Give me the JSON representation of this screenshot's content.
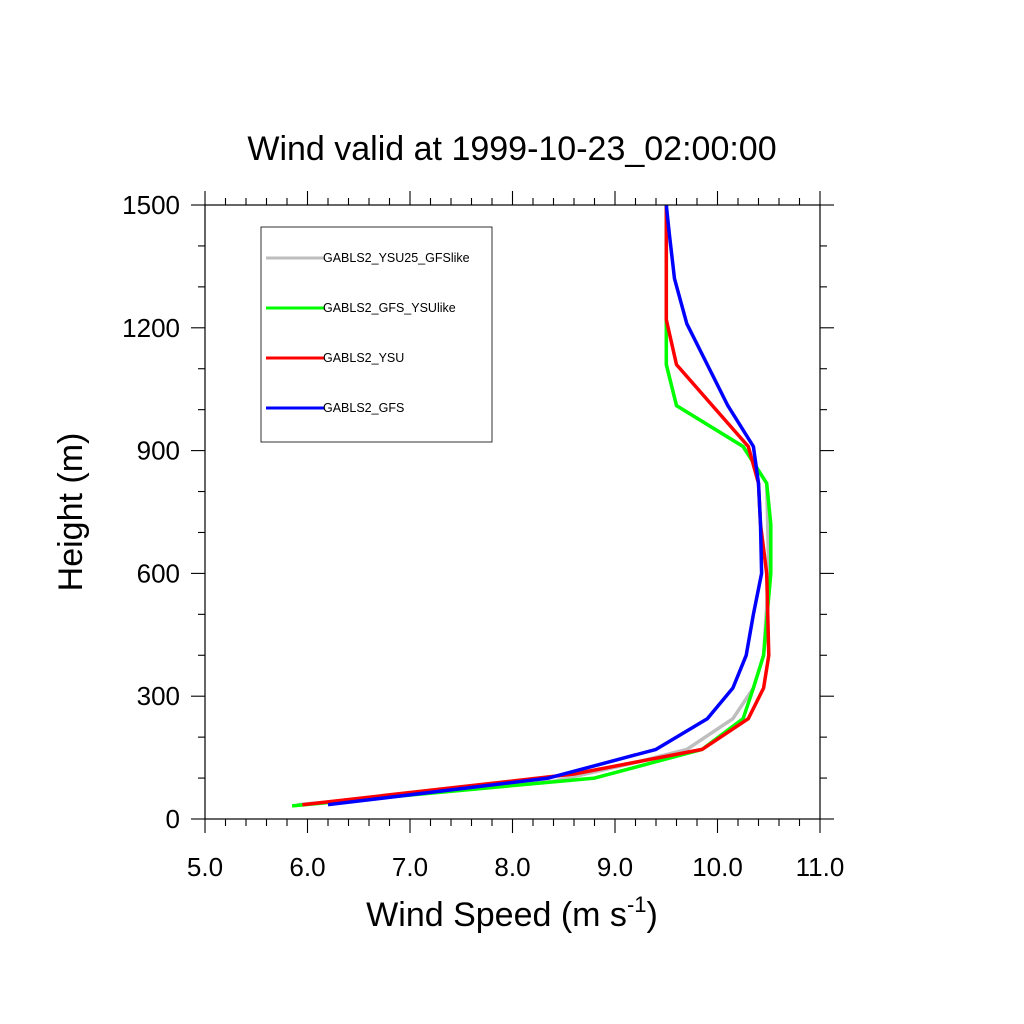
{
  "chart_data": {
    "type": "line",
    "title": "Wind valid at 1999-10-23_02:00:00",
    "xlabel": "Wind Speed (m s",
    "xlabel_sup": "-1",
    "xlabel_close": ")",
    "ylabel": "Height (m)",
    "xlim": [
      5.0,
      11.0
    ],
    "ylim": [
      0,
      1500
    ],
    "xticks": [
      5.0,
      6.0,
      7.0,
      8.0,
      9.0,
      10.0,
      11.0
    ],
    "xtick_labels": [
      "5.0",
      "6.0",
      "7.0",
      "8.0",
      "9.0",
      "10.0",
      "11.0"
    ],
    "yticks": [
      0,
      300,
      600,
      900,
      1200,
      1500
    ],
    "ytick_labels": [
      "0",
      "300",
      "600",
      "900",
      "1200",
      "1500"
    ],
    "grid": false,
    "legend_position": "top-left",
    "series": [
      {
        "name": "GABLS2_YSU25_GFSlike",
        "color": "#bebebe",
        "x": [
          5.9,
          8.4,
          9.15,
          9.7,
          10.15,
          10.35,
          10.45,
          10.5,
          10.48,
          10.25,
          9.6,
          9.5,
          9.5,
          9.5,
          9.5
        ],
        "y": [
          35,
          92,
          135,
          170,
          245,
          320,
          400,
          600,
          820,
          910,
          1010,
          1110,
          1220,
          1350,
          1500
        ]
      },
      {
        "name": "GABLS2_GFS_YSUlike",
        "color": "#00ff00",
        "x": [
          5.85,
          8.8,
          9.85,
          10.25,
          10.35,
          10.45,
          10.52,
          10.52,
          10.48,
          10.25,
          9.6,
          9.5,
          9.5,
          9.5,
          9.5
        ],
        "y": [
          32,
          100,
          170,
          245,
          320,
          400,
          600,
          720,
          820,
          910,
          1010,
          1110,
          1220,
          1350,
          1500
        ]
      },
      {
        "name": "GABLS2_YSU",
        "color": "#ff0000",
        "x": [
          5.95,
          8.6,
          9.85,
          10.3,
          10.45,
          10.5,
          10.48,
          10.42,
          10.4,
          10.3,
          9.95,
          9.6,
          9.5,
          9.5
        ],
        "y": [
          35,
          110,
          170,
          245,
          320,
          400,
          600,
          720,
          820,
          910,
          1010,
          1110,
          1220,
          1500
        ]
      },
      {
        "name": "GABLS2_GFS",
        "color": "#0000ff",
        "x": [
          6.2,
          8.35,
          9.4,
          9.9,
          10.15,
          10.28,
          10.35,
          10.43,
          10.42,
          10.4,
          10.35,
          10.1,
          9.9,
          9.7,
          9.58,
          9.53,
          9.5
        ],
        "y": [
          35,
          100,
          170,
          245,
          320,
          400,
          500,
          600,
          720,
          820,
          910,
          1010,
          1110,
          1210,
          1320,
          1430,
          1500
        ]
      }
    ]
  }
}
